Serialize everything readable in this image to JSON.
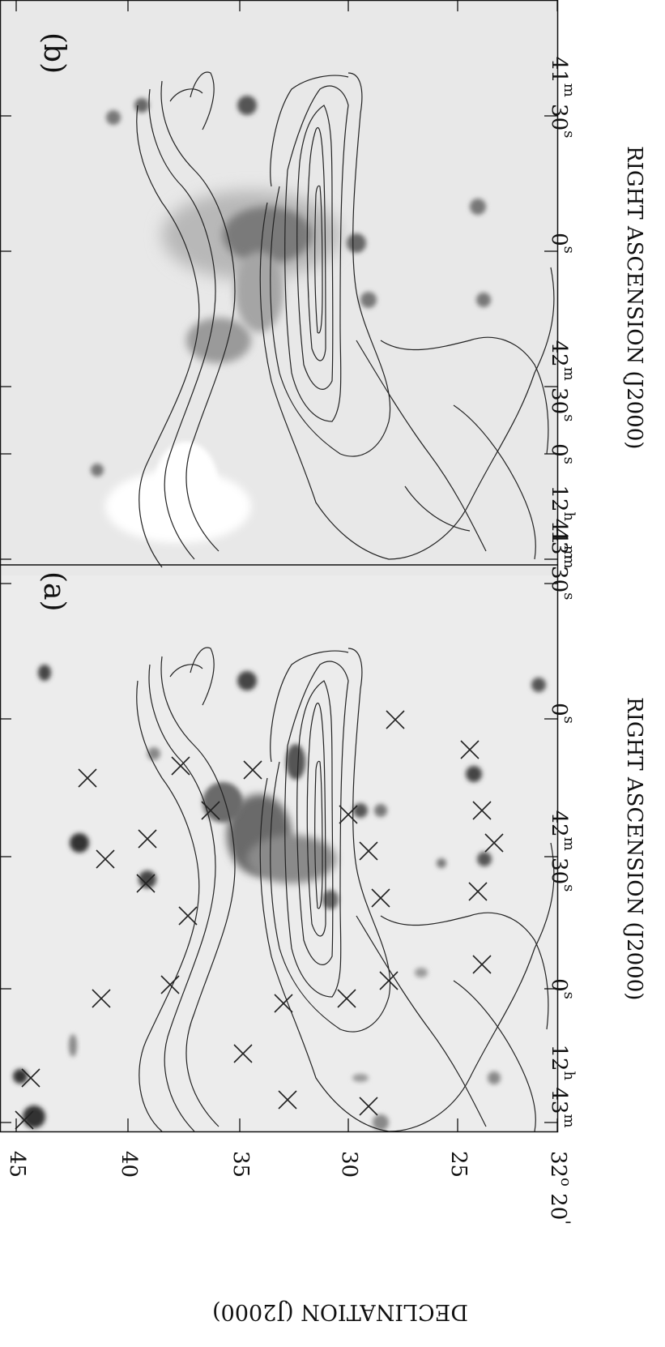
{
  "panels": [
    {
      "id": "a",
      "label": "(a)"
    },
    {
      "id": "b",
      "label": "(b)"
    }
  ],
  "axes": {
    "ra_label": "RIGHT ASCENSION (J2000)",
    "dec_label": "DECLINATION (J2000)",
    "ra_ticks": [
      {
        "main": "12",
        "sup": "h",
        "tail": "43",
        "tailsup": "m"
      },
      {
        "main": "0",
        "sup": "s",
        "tail": "",
        "tailsup": ""
      },
      {
        "main": "42",
        "sup": "m",
        "tail": "30",
        "tailsup": "s"
      },
      {
        "main": "0",
        "sup": "s",
        "tail": "",
        "tailsup": ""
      },
      {
        "main": "41",
        "sup": "m",
        "tail": "30",
        "tailsup": "s"
      }
    ],
    "dec_ticks": [
      {
        "text": "45"
      },
      {
        "text": "40"
      },
      {
        "text": "35"
      },
      {
        "text": "30"
      },
      {
        "text": "25"
      },
      {
        "text": "32",
        "sup": "o",
        "tail": " 20",
        "tailsup": "'"
      }
    ]
  },
  "markers_panel_a": [
    [
      30,
      1382
    ],
    [
      38,
      1330
    ],
    [
      125,
      1232
    ],
    [
      182,
      1035
    ],
    [
      232,
      1130
    ],
    [
      300,
      1300
    ],
    [
      355,
      1357
    ],
    [
      428,
      1232
    ],
    [
      480,
      1210
    ],
    [
      470,
      1108
    ],
    [
      455,
      1050
    ],
    [
      430,
      1005
    ],
    [
      350,
      1238
    ],
    [
      260,
      1000
    ],
    [
      180,
      1090
    ],
    [
      130,
      1060
    ],
    [
      108,
      960
    ],
    [
      223,
      945
    ],
    [
      312,
      950
    ],
    [
      488,
      888
    ],
    [
      595,
      1000
    ],
    [
      610,
      1040
    ],
    [
      590,
      1100
    ],
    [
      580,
      925
    ],
    [
      455,
      1365
    ],
    [
      210,
      1215
    ],
    [
      595,
      1190
    ]
  ],
  "markers_panel_b": [
    [
      30,
      1370
    ],
    [
      48,
      1395
    ],
    [
      125,
      1290
    ],
    [
      200,
      1165
    ],
    [
      240,
      1100
    ],
    [
      290,
      1055
    ],
    [
      315,
      1005
    ],
    [
      330,
      810
    ],
    [
      320,
      850
    ],
    [
      350,
      1320
    ],
    [
      455,
      1080
    ],
    [
      470,
      1060
    ],
    [
      488,
      920
    ],
    [
      600,
      1000
    ],
    [
      605,
      1140
    ],
    [
      570,
      1155
    ],
    [
      590,
      1190
    ],
    [
      460,
      1250
    ],
    [
      480,
      1282
    ],
    [
      420,
      1218
    ],
    [
      135,
      905
    ],
    [
      300,
      880
    ],
    [
      355,
      975
    ],
    [
      455,
      920
    ]
  ]
}
